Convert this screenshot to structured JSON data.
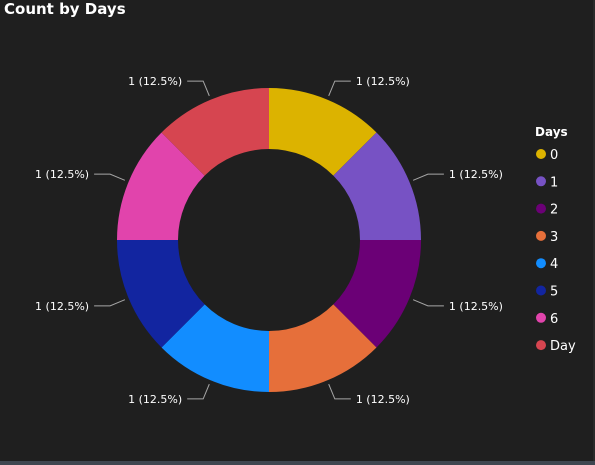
{
  "title": "Count by Days",
  "colors": {
    "background": "#1f1f1f",
    "text": "#ffffff",
    "leader": "#a6a6a6"
  },
  "chart_data": {
    "type": "pie",
    "variant": "donut",
    "title": "Count by Days",
    "legend": {
      "title": "Days",
      "placement": "right"
    },
    "slices": [
      {
        "category": "0",
        "value": 1,
        "label": "1 (12.5%)",
        "color": "#dcb300"
      },
      {
        "category": "1",
        "value": 1,
        "label": "1 (12.5%)",
        "color": "#7752c4"
      },
      {
        "category": "2",
        "value": 1,
        "label": "1 (12.5%)",
        "color": "#6b0076"
      },
      {
        "category": "3",
        "value": 1,
        "label": "1 (12.5%)",
        "color": "#e66f3a"
      },
      {
        "category": "4",
        "value": 1,
        "label": "1 (12.5%)",
        "color": "#128dff"
      },
      {
        "category": "5",
        "value": 1,
        "label": "1 (12.5%)",
        "color": "#1225a0"
      },
      {
        "category": "6",
        "value": 1,
        "label": "1 (12.5%)",
        "color": "#e144ac"
      },
      {
        "category": "Day",
        "value": 1,
        "label": "1 (12.5%)",
        "color": "#d64550"
      }
    ]
  }
}
